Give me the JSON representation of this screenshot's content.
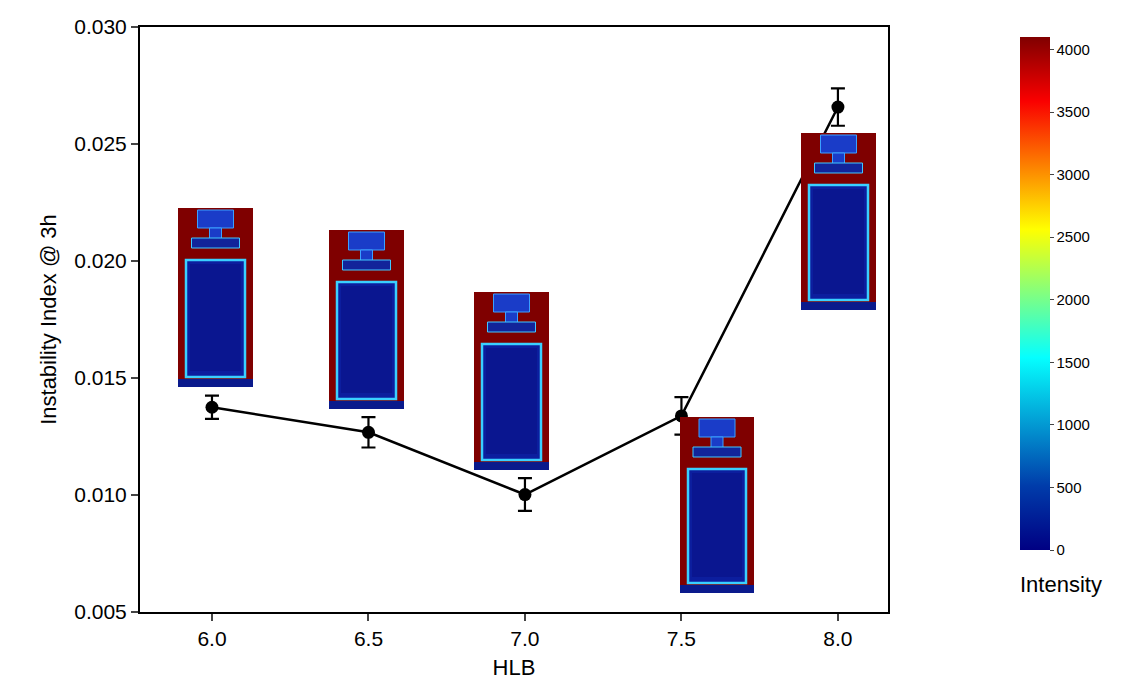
{
  "chart_data": {
    "type": "line",
    "x_label": "HLB",
    "y_label": "Instability Index @ 3h",
    "x": [
      6.0,
      6.5,
      7.0,
      7.5,
      8.0
    ],
    "series": [
      {
        "name": "Instability Index",
        "color": "#000000",
        "marker": "circle",
        "line_style": "solid",
        "values": [
          0.01375,
          0.01268,
          0.01002,
          0.01338,
          0.02658
        ],
        "errors": [
          0.0005,
          0.00065,
          0.0007,
          0.0008,
          0.0008
        ]
      }
    ],
    "xlim": [
      5.77,
      8.16
    ],
    "xticks": [
      {
        "value": 6.0,
        "label": "6.0"
      },
      {
        "value": 6.5,
        "label": "6.5"
      },
      {
        "value": 7.0,
        "label": "7.0"
      },
      {
        "value": 7.5,
        "label": "7.5"
      },
      {
        "value": 8.0,
        "label": "8.0"
      }
    ],
    "ylim": [
      0.005,
      0.03
    ],
    "yticks": [
      {
        "value": 0.005,
        "label": "0.005"
      },
      {
        "value": 0.01,
        "label": "0.010"
      },
      {
        "value": 0.015,
        "label": "0.015"
      },
      {
        "value": 0.02,
        "label": "0.020"
      },
      {
        "value": 0.025,
        "label": "0.025"
      },
      {
        "value": 0.03,
        "label": "0.030"
      }
    ],
    "grid": false,
    "colorbar": {
      "title": "Intensity",
      "range": [
        0,
        4100
      ],
      "ticks": [
        0,
        500,
        1000,
        1500,
        2000,
        2500,
        3000,
        3500,
        4000
      ]
    }
  }
}
